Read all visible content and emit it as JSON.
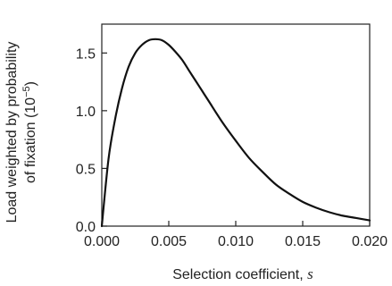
{
  "chart_data": {
    "type": "line",
    "xlabel": "Selection coefficient,",
    "xlabel_symbol": "s",
    "ylabel_line1": "Load weighted by probability",
    "ylabel_line2": "of fixation (10",
    "ylabel_exponent": "−5",
    "ylabel_close": ")",
    "xlim": [
      0.0,
      0.02
    ],
    "ylim": [
      0.0,
      1.75
    ],
    "x_ticks": [
      "0.000",
      "0.005",
      "0.010",
      "0.015",
      "0.020"
    ],
    "x_tick_values": [
      0.0,
      0.005,
      0.01,
      0.015,
      0.02
    ],
    "y_ticks": [
      "0.0",
      "0.5",
      "1.0",
      "1.5"
    ],
    "y_tick_values": [
      0.0,
      0.5,
      1.0,
      1.5
    ],
    "grid": false,
    "colors": {
      "line": "#111111",
      "axes": "#222222",
      "text": "#222222"
    },
    "series": [
      {
        "x": [
          0.0,
          0.0005,
          0.001,
          0.0015,
          0.002,
          0.0025,
          0.003,
          0.0035,
          0.004,
          0.0045,
          0.005,
          0.0055,
          0.006,
          0.0065,
          0.007,
          0.0075,
          0.008,
          0.009,
          0.01,
          0.011,
          0.012,
          0.013,
          0.014,
          0.015,
          0.016,
          0.017,
          0.018,
          0.019,
          0.02
        ],
        "y": [
          0.0,
          0.58,
          0.93,
          1.19,
          1.38,
          1.5,
          1.57,
          1.61,
          1.62,
          1.61,
          1.57,
          1.51,
          1.44,
          1.35,
          1.26,
          1.17,
          1.08,
          0.9,
          0.74,
          0.59,
          0.47,
          0.36,
          0.28,
          0.21,
          0.16,
          0.12,
          0.09,
          0.07,
          0.05
        ]
      }
    ]
  }
}
